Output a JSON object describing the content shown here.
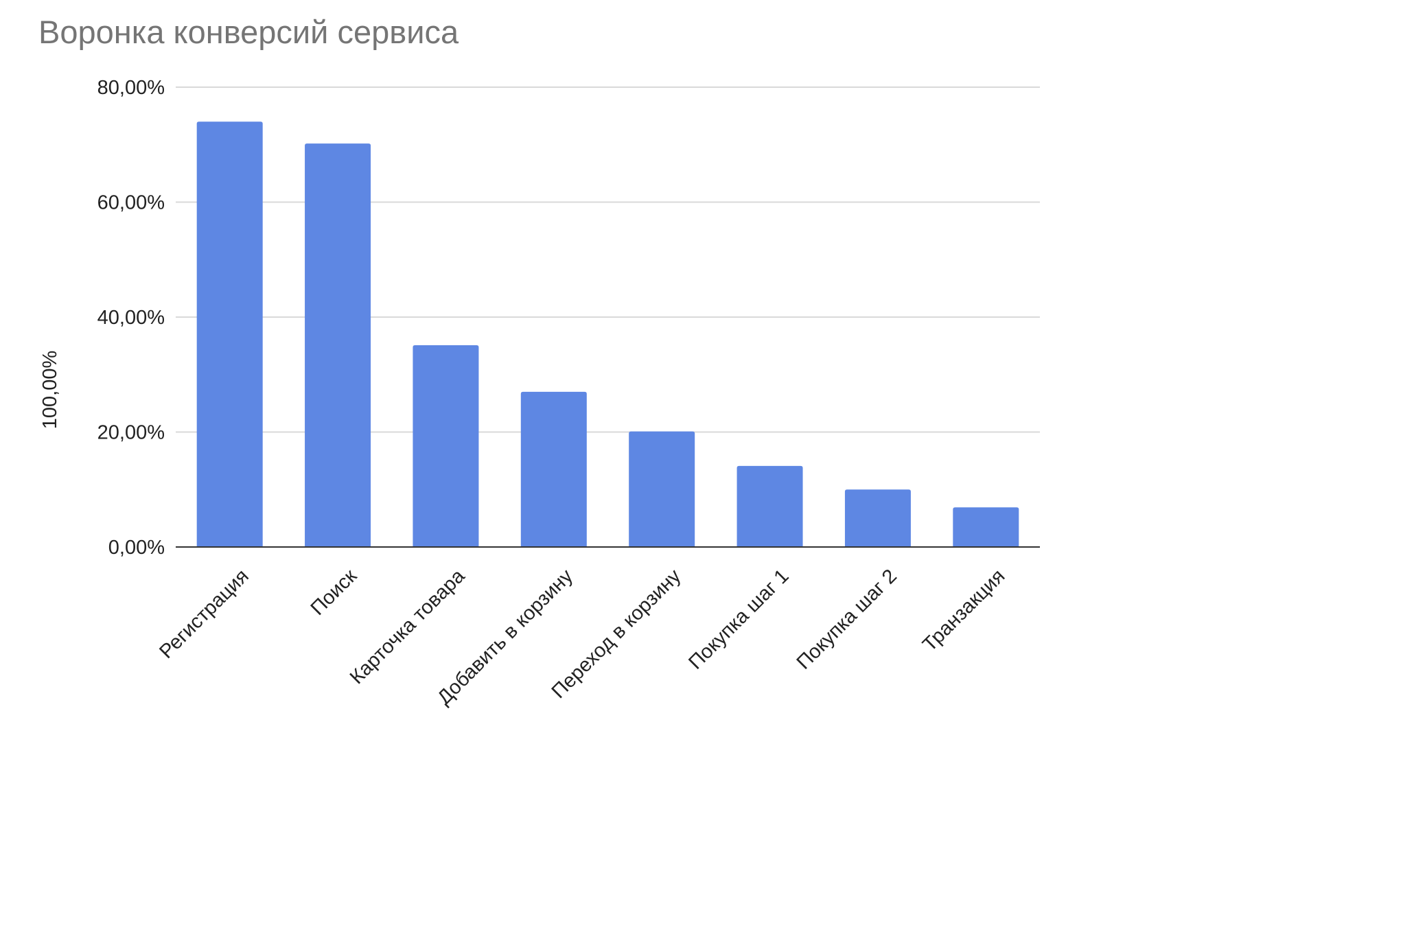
{
  "chart_data": {
    "type": "bar",
    "title": "Воронка конверсий сервиса",
    "ylabel": "100,00%",
    "xlabel": "",
    "categories": [
      "Регистрация",
      "Поиск",
      "Карточка товара",
      "Добавить в корзину",
      "Переход в корзину",
      "Покупка шаг 1",
      "Покупка шаг 2",
      "Транзакция"
    ],
    "values": [
      74,
      70.2,
      35.1,
      27,
      20.1,
      14.1,
      10,
      6.9
    ],
    "value_unit": "%",
    "ylim": [
      0,
      80
    ],
    "yticks": [
      0,
      20,
      40,
      60,
      80
    ],
    "ytick_labels": [
      "0,00%",
      "20,00%",
      "40,00%",
      "60,00%",
      "80,00%"
    ],
    "grid": true,
    "legend": "none",
    "bar_color": "#5e87e3",
    "title_color": "#757575"
  }
}
